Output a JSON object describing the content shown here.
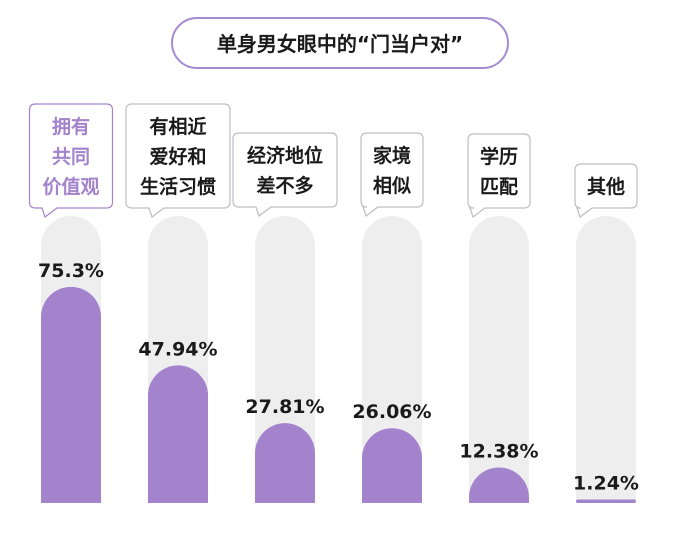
{
  "chart_data": {
    "type": "bar",
    "title": "单身男女眼中的“门当户对”",
    "categories": [
      [
        "拥有",
        "共同",
        "价值观"
      ],
      [
        "有相近",
        "爱好和",
        "生活习惯"
      ],
      [
        "经济地位",
        "差不多"
      ],
      [
        "家境",
        "相似"
      ],
      [
        "学历",
        "匹配"
      ],
      [
        "其他"
      ]
    ],
    "values": [
      75.3,
      47.94,
      27.81,
      26.06,
      12.38,
      1.24
    ],
    "value_labels": [
      "75.3%",
      "47.94%",
      "27.81%",
      "26.06%",
      "12.38%",
      "1.24%"
    ],
    "ylim": [
      0,
      100
    ],
    "grid": false,
    "legend": "none",
    "colors": {
      "bar": "#a383cb",
      "track": "#eeeeef",
      "title_border": "#a58ad0",
      "highlight_text": "#a383cb",
      "text": "#1a1a1a"
    }
  }
}
